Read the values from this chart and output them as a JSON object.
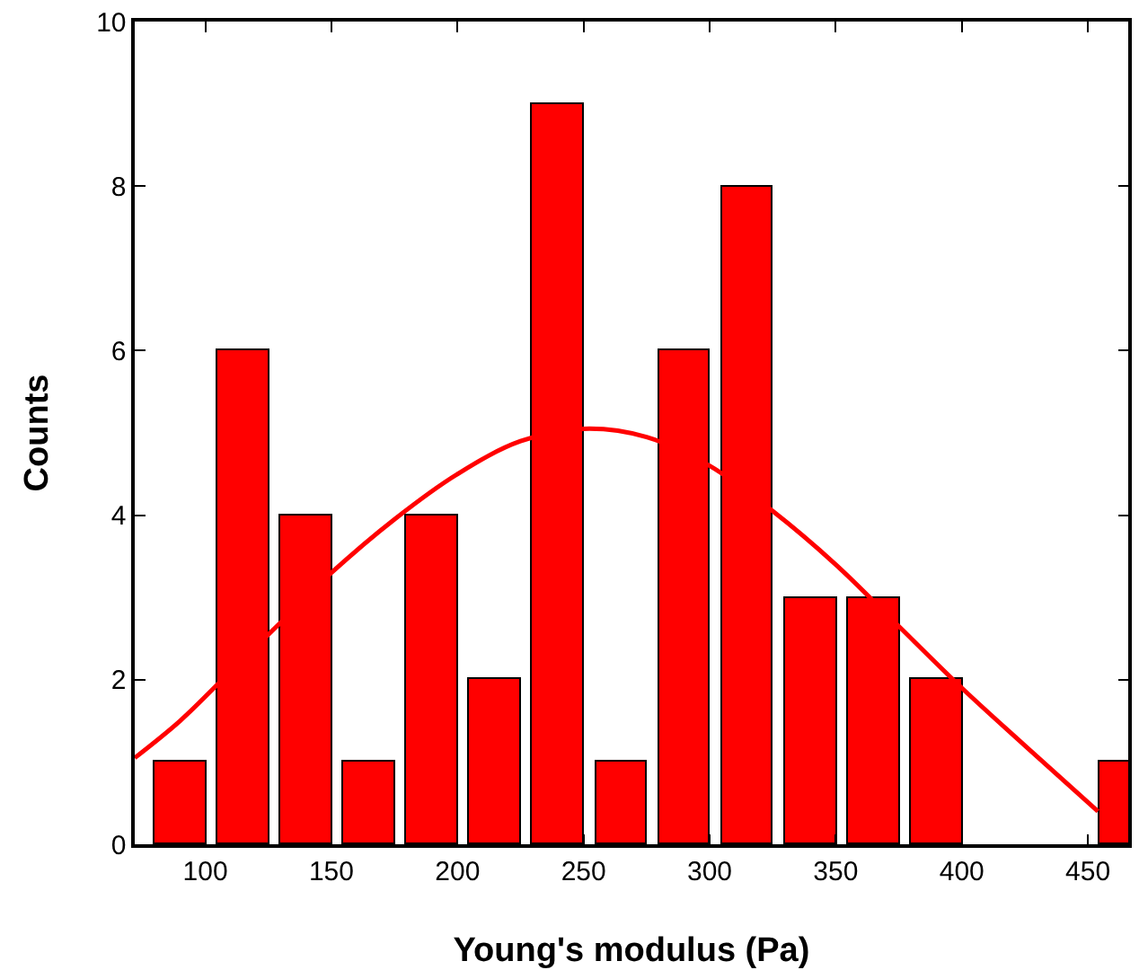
{
  "chart_data": {
    "type": "histogram",
    "xlabel": "Young's modulus (Pa)",
    "ylabel": "Counts",
    "bins": [
      77.5,
      102.5,
      127.5,
      152.5,
      177.5,
      202.5,
      227.5,
      252.5,
      277.5,
      302.5,
      327.5,
      352.5,
      377.5,
      402.5,
      427.5,
      452.5,
      477.5
    ],
    "series": [
      {
        "color": "#ff0000",
        "values": [
          1,
          6,
          4,
          1,
          4,
          2,
          9,
          1,
          6,
          8,
          3,
          3,
          2,
          0,
          0,
          1
        ]
      },
      {
        "type": "line",
        "color": "#ff0000",
        "x": [
          72,
          90,
          110,
          130,
          150,
          175,
          200,
          225,
          250,
          275,
          300,
          325,
          350,
          375,
          400,
          425,
          454
        ],
        "values": [
          1.05,
          1.5,
          2.1,
          2.7,
          3.3,
          3.95,
          4.5,
          4.9,
          5.05,
          4.95,
          4.6,
          4.05,
          3.4,
          2.65,
          1.9,
          1.2,
          0.4
        ]
      }
    ],
    "xlim": [
      72,
      466
    ],
    "xticks": [
      100,
      150,
      200,
      250,
      300,
      350,
      400,
      450
    ],
    "ylim": [
      0,
      10
    ],
    "yticks": [
      0,
      2,
      4,
      6,
      8,
      10
    ],
    "grid": false
  }
}
